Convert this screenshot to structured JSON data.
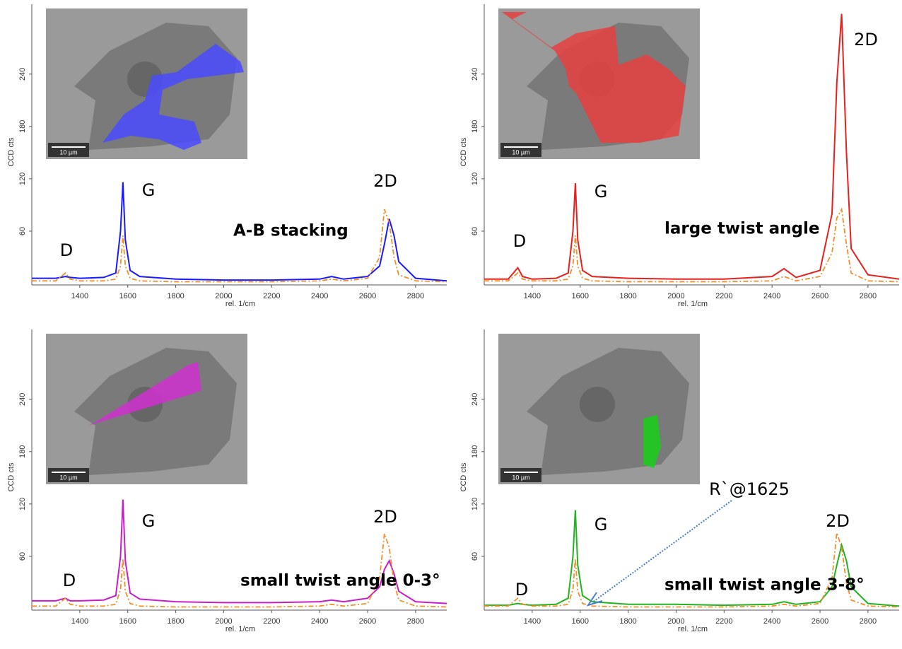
{
  "chart_data": [
    {
      "type": "line",
      "x": [
        1200,
        1300,
        1340,
        1360,
        1400,
        1500,
        1550,
        1570,
        1580,
        1590,
        1610,
        1650,
        1800,
        2000,
        2200,
        2400,
        2450,
        2500,
        2600,
        2650,
        2670,
        2690,
        2710,
        2730,
        2800,
        2930
      ],
      "series": [
        {
          "color": "#1a1aff",
          "linestyle": "solid",
          "values": [
            6,
            6,
            8,
            7,
            6,
            7,
            12,
            60,
            116,
            50,
            15,
            8,
            5,
            4,
            4,
            5,
            8,
            5,
            8,
            20,
            45,
            74,
            55,
            25,
            6,
            3
          ]
        },
        {
          "color": "#f0902a",
          "linestyle": "dashdot",
          "values": [
            3,
            3,
            12,
            5,
            3,
            3,
            5,
            20,
            55,
            20,
            6,
            3,
            2,
            2,
            2,
            3,
            5,
            3,
            6,
            30,
            85,
            70,
            30,
            10,
            3,
            2
          ]
        }
      ],
      "xlim": [
        1200,
        2930
      ],
      "xticks": [
        1400,
        1600,
        1800,
        2000,
        2200,
        2400,
        2600,
        2800
      ],
      "ylim": [
        0,
        320
      ],
      "yticks": [
        60,
        120,
        180,
        240
      ],
      "xlabel": "rel. 1/cm",
      "ylabel": "CCD cts",
      "annotations": [
        "D",
        "G",
        "2D",
        "A-B stacking"
      ],
      "inset_scale": "10 µm",
      "inset_color": "#4a4aff"
    },
    {
      "type": "line",
      "x": [
        1200,
        1300,
        1340,
        1360,
        1400,
        1500,
        1550,
        1570,
        1580,
        1590,
        1610,
        1650,
        1800,
        2000,
        2200,
        2400,
        2450,
        2500,
        2600,
        2650,
        2670,
        2690,
        2710,
        2730,
        2800,
        2930
      ],
      "series": [
        {
          "color": "#e8201c",
          "linestyle": "solid",
          "values": [
            5,
            5,
            18,
            8,
            5,
            6,
            12,
            60,
            115,
            50,
            15,
            8,
            6,
            5,
            5,
            8,
            17,
            7,
            15,
            80,
            230,
            309,
            150,
            40,
            10,
            5
          ]
        },
        {
          "color": "#f0902a",
          "linestyle": "dashdot",
          "values": [
            3,
            3,
            12,
            5,
            3,
            3,
            5,
            20,
            55,
            20,
            6,
            3,
            2,
            2,
            2,
            3,
            8,
            3,
            8,
            35,
            75,
            85,
            45,
            12,
            3,
            2
          ]
        }
      ],
      "xlim": [
        1200,
        2930
      ],
      "xticks": [
        1400,
        1600,
        1800,
        2000,
        2200,
        2400,
        2600,
        2800
      ],
      "ylim": [
        0,
        320
      ],
      "yticks": [
        60,
        120,
        180,
        240
      ],
      "xlabel": "rel. 1/cm",
      "ylabel": "CCD cts",
      "annotations": [
        "D",
        "G",
        "2D",
        "large twist angle"
      ],
      "inset_scale": "10 µm",
      "inset_color": "#e84040"
    },
    {
      "type": "line",
      "x": [
        1200,
        1300,
        1340,
        1360,
        1400,
        1500,
        1550,
        1570,
        1580,
        1590,
        1610,
        1650,
        1800,
        2000,
        2200,
        2400,
        2450,
        2500,
        2600,
        2650,
        2670,
        2690,
        2710,
        2730,
        2800,
        2930
      ],
      "series": [
        {
          "color": "#c81ec8",
          "linestyle": "solid",
          "values": [
            9,
            9,
            12,
            9,
            9,
            10,
            15,
            60,
            125,
            55,
            18,
            11,
            8,
            7,
            7,
            8,
            10,
            8,
            12,
            25,
            45,
            55,
            40,
            20,
            8,
            6
          ]
        },
        {
          "color": "#f0902a",
          "linestyle": "dashdot",
          "values": [
            3,
            3,
            12,
            5,
            3,
            3,
            5,
            22,
            57,
            20,
            6,
            3,
            2,
            2,
            2,
            3,
            5,
            3,
            6,
            35,
            86,
            70,
            30,
            10,
            3,
            2
          ]
        }
      ],
      "xlim": [
        1200,
        2930
      ],
      "xticks": [
        1400,
        1600,
        1800,
        2000,
        2200,
        2400,
        2600,
        2800
      ],
      "ylim": [
        0,
        320
      ],
      "yticks": [
        60,
        120,
        180,
        240
      ],
      "xlabel": "rel. 1/cm",
      "ylabel": "CCD cts",
      "annotations": [
        "D",
        "G",
        "2D",
        "small twist angle 0-3°"
      ],
      "inset_scale": "10 µm",
      "inset_color": "#d030d0"
    },
    {
      "type": "line",
      "x": [
        1200,
        1300,
        1340,
        1360,
        1400,
        1500,
        1550,
        1570,
        1580,
        1590,
        1610,
        1650,
        1800,
        2000,
        2200,
        2400,
        2450,
        2500,
        2600,
        2650,
        2670,
        2690,
        2710,
        2730,
        2800,
        2930
      ],
      "series": [
        {
          "color": "#22b322",
          "linestyle": "solid",
          "values": [
            4,
            4,
            6,
            5,
            4,
            5,
            12,
            60,
            113,
            50,
            15,
            8,
            5,
            5,
            4,
            5,
            8,
            5,
            8,
            25,
            50,
            73,
            55,
            25,
            6,
            3
          ]
        },
        {
          "color": "#f0902a",
          "linestyle": "dashdot",
          "values": [
            3,
            3,
            12,
            5,
            3,
            3,
            5,
            22,
            57,
            20,
            6,
            3,
            2,
            2,
            2,
            3,
            5,
            3,
            6,
            35,
            87,
            70,
            30,
            10,
            3,
            2
          ]
        }
      ],
      "xlim": [
        1200,
        2930
      ],
      "xticks": [
        1400,
        1600,
        1800,
        2000,
        2200,
        2400,
        2600,
        2800
      ],
      "ylim": [
        0,
        320
      ],
      "yticks": [
        60,
        120,
        180,
        240
      ],
      "xlabel": "rel. 1/cm",
      "ylabel": "CCD cts",
      "annotations": [
        "D",
        "G",
        "2D",
        "small twist angle 3-8°",
        "R`@1625"
      ],
      "inset_scale": "10 µm",
      "inset_color": "#18d018"
    }
  ]
}
